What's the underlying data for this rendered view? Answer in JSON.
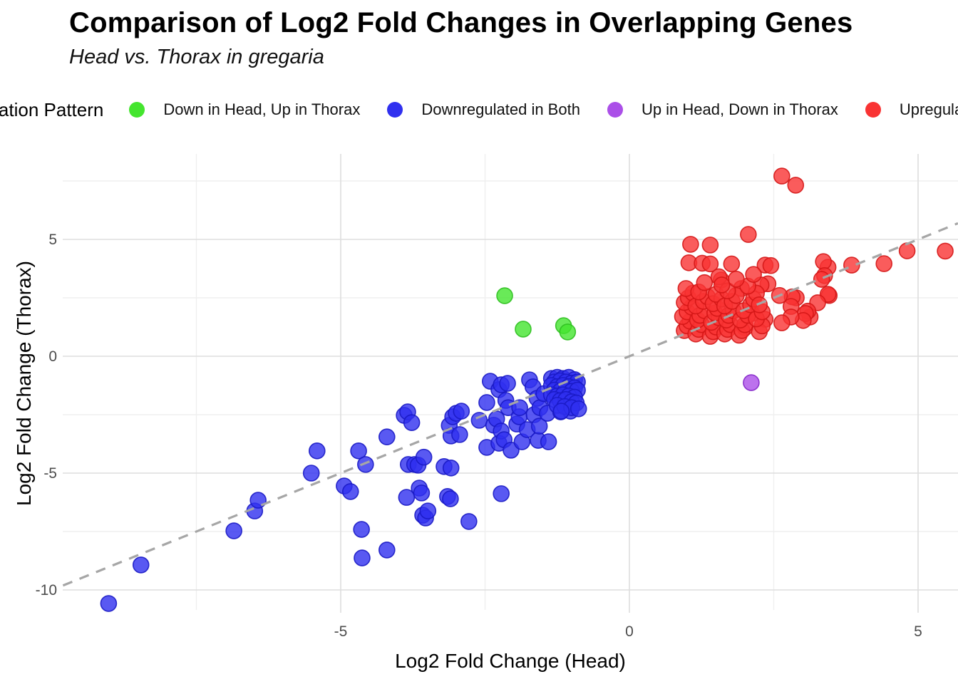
{
  "header": {
    "title": "Comparison of Log2 Fold Changes in Overlapping Genes",
    "subtitle": "Head vs. Thorax in gregaria"
  },
  "chart_data": {
    "type": "scatter",
    "title": "Comparison of Log2 Fold Changes in Overlapping Genes",
    "subtitle": "Head vs. Thorax in gregaria",
    "xlabel": "Log2 Fold Change (Head)",
    "ylabel": "Log2 Fold Change (Thorax)",
    "legend_title": "Regulation Pattern",
    "legend_position": "top",
    "grid": true,
    "x_ticks": [
      -5,
      0,
      5
    ],
    "y_ticks": [
      5,
      0,
      -5,
      -10
    ],
    "x_minor": [
      -7.5,
      -2.5,
      2.5
    ],
    "y_minor": [
      7.5,
      2.5,
      -2.5,
      -7.5
    ],
    "xlim": [
      -9.81,
      5.69
    ],
    "ylim": [
      -10.85,
      8.66
    ],
    "identity_line": {
      "slope": 1,
      "intercept": 0,
      "style": "dashed",
      "color": "#a6a6a6"
    },
    "series": [
      {
        "name": "Down in Head, Up in Thorax",
        "color": "#44e52e",
        "stroke": "#2fbf20",
        "points": [
          [
            -2.16,
            2.59
          ],
          [
            -1.84,
            1.16
          ],
          [
            -1.14,
            1.31
          ],
          [
            -1.07,
            1.04
          ]
        ]
      },
      {
        "name": "Downregulated in Both",
        "color": "#3030ef",
        "stroke": "#1a1ac4",
        "points": [
          [
            -9.02,
            -10.58
          ],
          [
            -8.46,
            -8.93
          ],
          [
            -6.85,
            -7.47
          ],
          [
            -6.49,
            -6.62
          ],
          [
            -6.43,
            -6.16
          ],
          [
            -5.51,
            -5.0
          ],
          [
            -5.41,
            -4.05
          ],
          [
            -4.94,
            -5.55
          ],
          [
            -4.83,
            -5.79
          ],
          [
            -4.69,
            -4.05
          ],
          [
            -4.64,
            -7.41
          ],
          [
            -4.63,
            -8.63
          ],
          [
            -4.57,
            -4.63
          ],
          [
            -4.2,
            -8.29
          ],
          [
            -4.2,
            -3.45
          ],
          [
            -3.9,
            -2.53
          ],
          [
            -3.84,
            -2.38
          ],
          [
            -3.83,
            -4.63
          ],
          [
            -3.86,
            -6.04
          ],
          [
            -3.77,
            -2.84
          ],
          [
            -3.72,
            -4.63
          ],
          [
            -3.66,
            -4.66
          ],
          [
            -3.64,
            -5.64
          ],
          [
            -3.6,
            -5.85
          ],
          [
            -3.58,
            -6.8
          ],
          [
            -3.56,
            -4.32
          ],
          [
            -3.53,
            -6.92
          ],
          [
            -3.49,
            -6.62
          ],
          [
            -3.21,
            -4.72
          ],
          [
            -3.15,
            -6.0
          ],
          [
            -3.12,
            -2.96
          ],
          [
            -3.1,
            -6.1
          ],
          [
            -3.09,
            -4.78
          ],
          [
            -3.09,
            -3.41
          ],
          [
            -3.06,
            -2.59
          ],
          [
            -3.0,
            -2.44
          ],
          [
            -2.94,
            -3.35
          ],
          [
            -2.91,
            -2.35
          ],
          [
            -2.78,
            -7.07
          ],
          [
            -2.6,
            -2.74
          ],
          [
            -2.47,
            -3.9
          ],
          [
            -2.47,
            -1.98
          ],
          [
            -2.41,
            -1.07
          ],
          [
            -2.35,
            -2.95
          ],
          [
            -2.3,
            -2.68
          ],
          [
            -2.26,
            -3.72
          ],
          [
            -2.26,
            -1.43
          ],
          [
            -2.22,
            -5.88
          ],
          [
            -2.22,
            -3.2
          ],
          [
            -2.22,
            -1.22
          ],
          [
            -2.17,
            -3.57
          ],
          [
            -2.14,
            -1.89
          ],
          [
            -2.11,
            -1.16
          ],
          [
            -2.1,
            -2.2
          ],
          [
            -2.05,
            -4.02
          ],
          [
            -1.95,
            -2.9
          ],
          [
            -1.91,
            -2.59
          ],
          [
            -1.9,
            -2.2
          ],
          [
            -1.86,
            -3.66
          ],
          [
            -1.77,
            -3.14
          ],
          [
            -1.73,
            -1.01
          ],
          [
            -1.67,
            -1.31
          ],
          [
            -1.65,
            -2.5
          ],
          [
            -1.6,
            -1.8
          ],
          [
            -1.58,
            -3.6
          ],
          [
            -1.56,
            -2.99
          ],
          [
            -1.55,
            -2.2
          ],
          [
            -1.48,
            -1.6
          ],
          [
            -1.42,
            -2.44
          ],
          [
            -1.4,
            -3.66
          ],
          [
            -1.19,
            -2.38
          ],
          [
            -1.02,
            -2.35
          ],
          [
            -1.35,
            -0.95
          ],
          [
            -1.25,
            -0.9
          ],
          [
            -1.15,
            -0.95
          ],
          [
            -1.05,
            -0.9
          ],
          [
            -0.95,
            -1.0
          ],
          [
            -1.3,
            -1.1
          ],
          [
            -1.2,
            -1.05
          ],
          [
            -1.1,
            -1.1
          ],
          [
            -1.0,
            -1.15
          ],
          [
            -0.9,
            -1.1
          ],
          [
            -1.35,
            -1.25
          ],
          [
            -1.25,
            -1.3
          ],
          [
            -1.15,
            -1.25
          ],
          [
            -1.05,
            -1.3
          ],
          [
            -0.95,
            -1.35
          ],
          [
            -1.3,
            -1.45
          ],
          [
            -1.2,
            -1.5
          ],
          [
            -1.1,
            -1.45
          ],
          [
            -1.0,
            -1.5
          ],
          [
            -0.9,
            -1.45
          ],
          [
            -1.35,
            -1.65
          ],
          [
            -1.25,
            -1.7
          ],
          [
            -1.15,
            -1.65
          ],
          [
            -1.05,
            -1.7
          ],
          [
            -0.95,
            -1.75
          ],
          [
            -1.3,
            -1.85
          ],
          [
            -1.2,
            -1.9
          ],
          [
            -1.1,
            -1.85
          ],
          [
            -1.0,
            -1.95
          ],
          [
            -0.92,
            -2.0
          ],
          [
            -1.25,
            -2.1
          ],
          [
            -1.12,
            -2.15
          ],
          [
            -1.0,
            -2.2
          ],
          [
            -0.88,
            -2.25
          ],
          [
            -1.18,
            -2.35
          ]
        ]
      },
      {
        "name": "Up in Head, Down in Thorax",
        "color": "#ab4fe8",
        "stroke": "#8427c9",
        "points": [
          [
            2.11,
            -1.13
          ]
        ]
      },
      {
        "name": "Upregulated in Both",
        "color": "#f93333",
        "stroke": "#d41616",
        "points": [
          [
            1.03,
            4.0
          ],
          [
            1.26,
            3.98
          ],
          [
            1.4,
            3.95
          ],
          [
            1.77,
            3.95
          ],
          [
            2.35,
            3.9
          ],
          [
            2.45,
            3.88
          ],
          [
            1.06,
            4.79
          ],
          [
            1.4,
            4.76
          ],
          [
            2.06,
            5.21
          ],
          [
            2.64,
            7.71
          ],
          [
            2.88,
            7.32
          ],
          [
            5.47,
            4.5
          ],
          [
            4.81,
            4.51
          ],
          [
            4.41,
            3.96
          ],
          [
            3.85,
            3.9
          ],
          [
            3.44,
            3.81
          ],
          [
            3.36,
            4.05
          ],
          [
            3.38,
            3.45
          ],
          [
            3.33,
            3.29
          ],
          [
            3.46,
            2.6
          ],
          [
            3.44,
            2.65
          ],
          [
            3.26,
            2.29
          ],
          [
            3.13,
            1.68
          ],
          [
            3.09,
            1.93
          ],
          [
            3.05,
            1.83
          ],
          [
            3.01,
            1.53
          ],
          [
            2.89,
            2.5
          ],
          [
            2.82,
            2.54
          ],
          [
            2.8,
            2.13
          ],
          [
            2.8,
            1.68
          ],
          [
            2.64,
            1.43
          ],
          [
            2.6,
            2.6
          ],
          [
            2.4,
            3.1
          ],
          [
            2.35,
            1.58
          ],
          [
            2.28,
            3.05
          ],
          [
            2.12,
            1.83
          ],
          [
            2.0,
            1.22
          ],
          [
            1.94,
            2.9
          ],
          [
            1.59,
            3.26
          ],
          [
            0.95,
            1.1
          ],
          [
            1.0,
            1.3
          ],
          [
            1.05,
            1.5
          ],
          [
            0.92,
            1.7
          ],
          [
            1.0,
            1.9
          ],
          [
            1.08,
            2.1
          ],
          [
            0.95,
            2.3
          ],
          [
            1.02,
            2.5
          ],
          [
            1.1,
            2.7
          ],
          [
            0.98,
            2.9
          ],
          [
            1.15,
            0.95
          ],
          [
            1.2,
            1.15
          ],
          [
            1.25,
            1.35
          ],
          [
            1.18,
            1.55
          ],
          [
            1.22,
            1.75
          ],
          [
            1.3,
            1.95
          ],
          [
            1.15,
            2.15
          ],
          [
            1.28,
            2.35
          ],
          [
            1.35,
            2.55
          ],
          [
            1.2,
            2.75
          ],
          [
            1.4,
            0.85
          ],
          [
            1.45,
            1.05
          ],
          [
            1.5,
            1.25
          ],
          [
            1.42,
            1.45
          ],
          [
            1.55,
            1.65
          ],
          [
            1.48,
            1.85
          ],
          [
            1.52,
            2.05
          ],
          [
            1.45,
            2.25
          ],
          [
            1.6,
            2.45
          ],
          [
            1.5,
            2.65
          ],
          [
            1.65,
            0.95
          ],
          [
            1.7,
            1.15
          ],
          [
            1.75,
            1.35
          ],
          [
            1.68,
            1.55
          ],
          [
            1.72,
            1.75
          ],
          [
            1.8,
            1.95
          ],
          [
            1.65,
            2.15
          ],
          [
            1.78,
            2.35
          ],
          [
            1.85,
            2.6
          ],
          [
            1.7,
            2.8
          ],
          [
            1.9,
            0.9
          ],
          [
            1.95,
            1.1
          ],
          [
            2.0,
            1.35
          ],
          [
            1.92,
            1.55
          ],
          [
            2.05,
            1.75
          ],
          [
            1.98,
            1.95
          ],
          [
            2.1,
            2.2
          ],
          [
            2.15,
            2.45
          ],
          [
            2.2,
            2.7
          ],
          [
            2.05,
            3.0
          ],
          [
            2.25,
            1.05
          ],
          [
            2.3,
            1.3
          ],
          [
            2.2,
            1.6
          ],
          [
            2.3,
            1.9
          ],
          [
            2.25,
            2.2
          ],
          [
            1.3,
            3.15
          ],
          [
            1.55,
            3.4
          ],
          [
            1.85,
            3.3
          ],
          [
            1.6,
            3.05
          ],
          [
            2.15,
            3.5
          ]
        ]
      }
    ]
  }
}
